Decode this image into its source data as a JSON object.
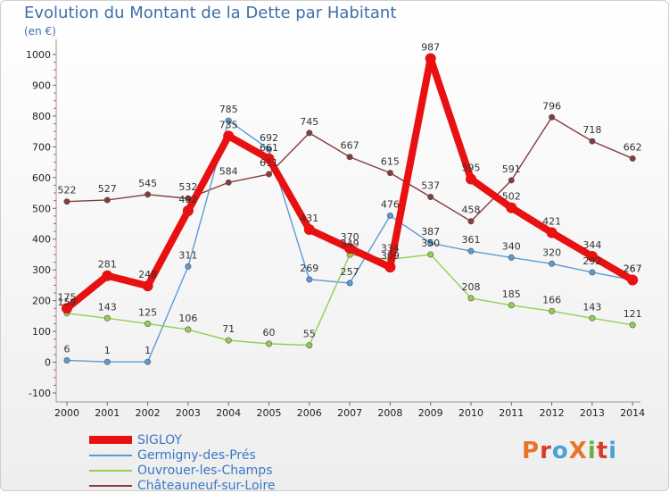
{
  "header": {
    "title": "Evolution du Montant de la Dette par Habitant",
    "unit": "(en €)"
  },
  "logo": {
    "text": "ProXiti",
    "colors": [
      "#e8742a",
      "#d93c2a",
      "#4aa0d8",
      "#e8742a",
      "#6ab23a",
      "#d93c2a",
      "#4aa0d8"
    ]
  },
  "chart_data": {
    "type": "line",
    "x": [
      2000,
      2001,
      2002,
      2003,
      2004,
      2005,
      2006,
      2007,
      2008,
      2009,
      2010,
      2011,
      2012,
      2013,
      2014
    ],
    "ylim": [
      -100,
      1000
    ],
    "yticks": [
      -100,
      0,
      100,
      200,
      300,
      400,
      500,
      600,
      700,
      800,
      900,
      1000
    ],
    "grid": false,
    "legend_position": "bottom-left",
    "series": [
      {
        "name": "SIGLOY",
        "color": "#e81010",
        "values": [
          175,
          281,
          248,
          492,
          735,
          661,
          431,
          370,
          309,
          987,
          595,
          502,
          421,
          344,
          267
        ]
      },
      {
        "name": "Germigny-des-Prés",
        "color": "#5b9bd5",
        "values": [
          6,
          1,
          1,
          311,
          785,
          692,
          269,
          257,
          476,
          387,
          361,
          340,
          320,
          292,
          267
        ]
      },
      {
        "name": "Ouvrouer-les-Champs",
        "color": "#92d050",
        "values": [
          159,
          143,
          125,
          106,
          71,
          60,
          55,
          349,
          334,
          350,
          208,
          185,
          166,
          143,
          121
        ]
      },
      {
        "name": "Châteauneuf-sur-Loire",
        "color": "#843c3c",
        "values": [
          522,
          527,
          545,
          532,
          584,
          611,
          745,
          667,
          615,
          537,
          458,
          591,
          796,
          718,
          662
        ]
      }
    ]
  }
}
